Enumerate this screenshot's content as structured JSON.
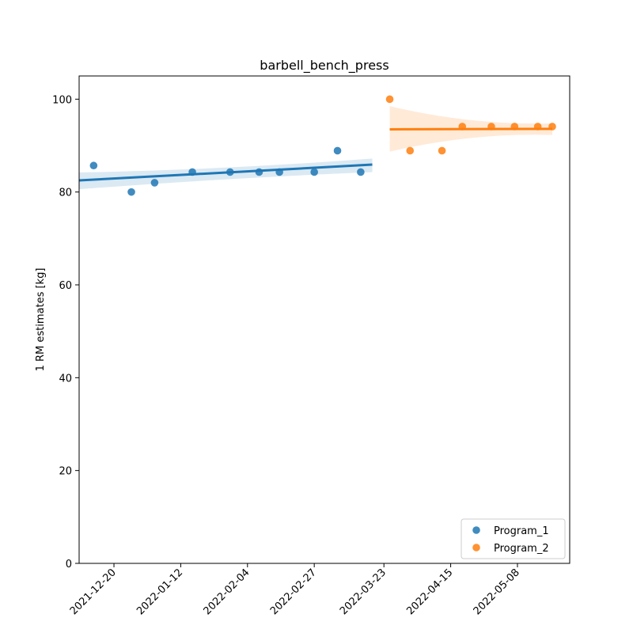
{
  "chart_data": {
    "type": "scatter",
    "title": "barbell_bench_press",
    "xlabel": "",
    "ylabel": "1 RM estimates [kg]",
    "ylim": [
      0,
      105
    ],
    "xlim": [
      "2021-12-08",
      "2022-05-26"
    ],
    "x_ticks": [
      "2021-12-20",
      "2022-01-12",
      "2022-02-04",
      "2022-02-27",
      "2022-03-23",
      "2022-04-15",
      "2022-05-08"
    ],
    "y_ticks": [
      0,
      20,
      40,
      60,
      80,
      100
    ],
    "legend_position": "lower-right",
    "series": [
      {
        "name": "Program_1",
        "color": "#1f77b4",
        "points": [
          {
            "x": "2021-12-13",
            "y": 85.7
          },
          {
            "x": "2021-12-26",
            "y": 80.0
          },
          {
            "x": "2022-01-03",
            "y": 82.0
          },
          {
            "x": "2022-01-16",
            "y": 84.3
          },
          {
            "x": "2022-01-29",
            "y": 84.3
          },
          {
            "x": "2022-02-08",
            "y": 84.3
          },
          {
            "x": "2022-02-15",
            "y": 84.3
          },
          {
            "x": "2022-02-27",
            "y": 84.3
          },
          {
            "x": "2022-03-07",
            "y": 88.9
          },
          {
            "x": "2022-03-15",
            "y": 84.3
          }
        ],
        "trend": {
          "x_start": "2021-12-08",
          "x_end": "2022-03-19",
          "y_start": 82.5,
          "y_end": 85.9
        },
        "ci": {
          "upper_start": 84.2,
          "upper_mid": 84.8,
          "upper_end": 87.2,
          "lower_start": 80.6,
          "lower_mid": 83.0,
          "lower_end": 84.3
        }
      },
      {
        "name": "Program_2",
        "color": "#ff7f0e",
        "points": [
          {
            "x": "2022-03-25",
            "y": 100.0
          },
          {
            "x": "2022-04-01",
            "y": 88.9
          },
          {
            "x": "2022-04-12",
            "y": 88.9
          },
          {
            "x": "2022-04-19",
            "y": 94.1
          },
          {
            "x": "2022-04-29",
            "y": 94.1
          },
          {
            "x": "2022-05-07",
            "y": 94.1
          },
          {
            "x": "2022-05-15",
            "y": 94.1
          },
          {
            "x": "2022-05-20",
            "y": 94.1
          }
        ],
        "trend": {
          "x_start": "2022-03-25",
          "x_end": "2022-05-20",
          "y_start": 93.5,
          "y_end": 93.6
        },
        "ci": {
          "upper_start": 98.5,
          "upper_mid": 94.3,
          "upper_end": 94.8,
          "lower_start": 88.7,
          "lower_mid": 92.8,
          "lower_end": 92.3
        }
      }
    ]
  }
}
